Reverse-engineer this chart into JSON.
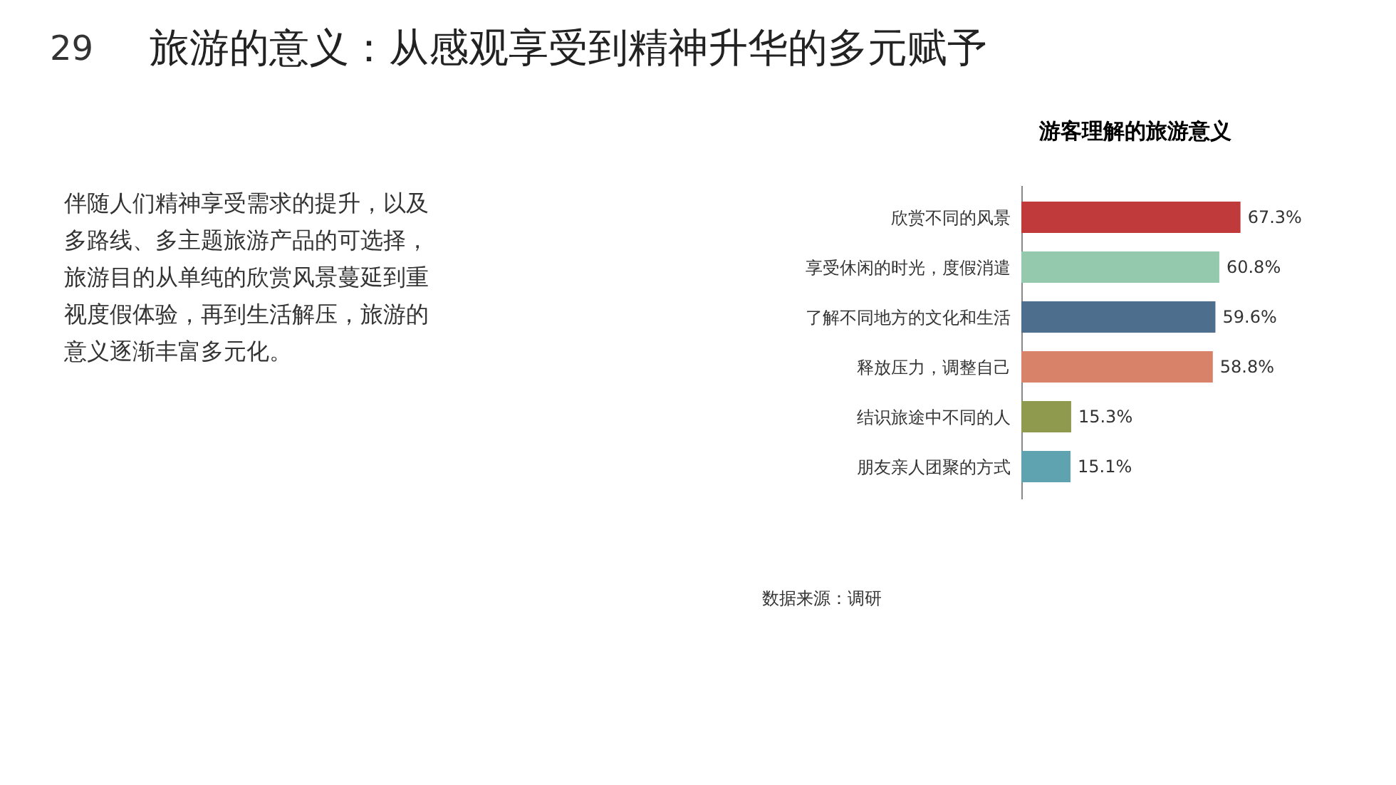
{
  "chart_data": {
    "type": "bar",
    "orientation": "horizontal",
    "title": "游客理解的旅游意义",
    "categories": [
      "欣赏不同的风景",
      "享受休闲的时光，度假消遣",
      "了解不同地方的文化和生活",
      "释放压力，调整自己",
      "结识旅途中不同的人",
      "朋友亲人团聚的方式"
    ],
    "values": [
      67.3,
      60.8,
      59.6,
      58.8,
      15.3,
      15.1
    ],
    "colors": [
      "#c0393b",
      "#95c9ad",
      "#4d6e8c",
      "#d9826a",
      "#8f9a4f",
      "#5fa3b0"
    ],
    "value_labels": [
      "67.3%",
      "60.8%",
      "59.6%",
      "58.8%",
      "15.3%",
      "15.1%"
    ],
    "annotations": [
      "29",
      "旅游的意义：从感观享受到精神升华的多元赋予",
      "伴随人们精神享受需求的提升，以及多路线、多主题旅游产品的可选择，旅游目的从单纯的欣赏风景蔓延到重视度假体验，再到生活解压，旅游的意义逐渐丰富多元化。",
      "数据来源：调研"
    ]
  }
}
